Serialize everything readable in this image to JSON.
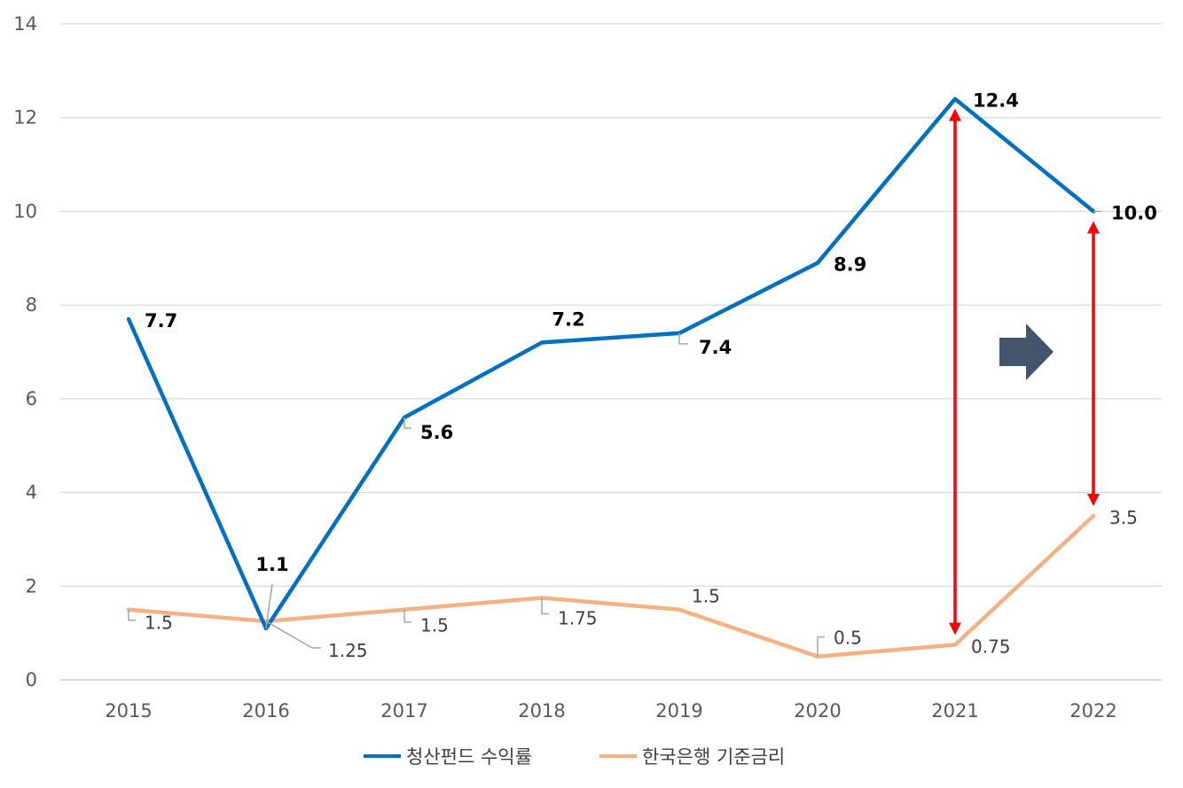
{
  "chart_data": {
    "type": "line",
    "title": "",
    "xlabel": "",
    "ylabel": "",
    "categories": [
      "2015",
      "2016",
      "2017",
      "2018",
      "2019",
      "2020",
      "2021",
      "2022"
    ],
    "ylim": [
      0,
      14
    ],
    "yticks": [
      0,
      2,
      4,
      6,
      8,
      10,
      12,
      14
    ],
    "grid": true,
    "legend_position": "bottom",
    "series": [
      {
        "name": "청산펀드 수익률",
        "color": "#0070C0",
        "values": [
          7.7,
          1.1,
          5.6,
          7.2,
          7.4,
          8.9,
          12.4,
          10.0
        ],
        "labels": [
          "7.7",
          "1.1",
          "5.6",
          "7.2",
          "7.4",
          "8.9",
          "12.4",
          "10.0"
        ]
      },
      {
        "name": "한국은행 기준금리",
        "color": "#F4B183",
        "values": [
          1.5,
          1.25,
          1.5,
          1.75,
          1.5,
          0.5,
          0.75,
          3.5
        ],
        "labels": [
          "1.5",
          "1.25",
          "1.5",
          "1.75",
          "1.5",
          "0.5",
          "0.75",
          "3.5"
        ]
      }
    ],
    "annotations": {
      "gap_arrow_color": "#FF0000",
      "gap_arrows": [
        {
          "category": "2021",
          "from": 0.75,
          "to": 12.4
        },
        {
          "category": "2022",
          "from": 3.5,
          "to": 10.0
        }
      ],
      "block_arrow_color": "#44546A"
    }
  }
}
